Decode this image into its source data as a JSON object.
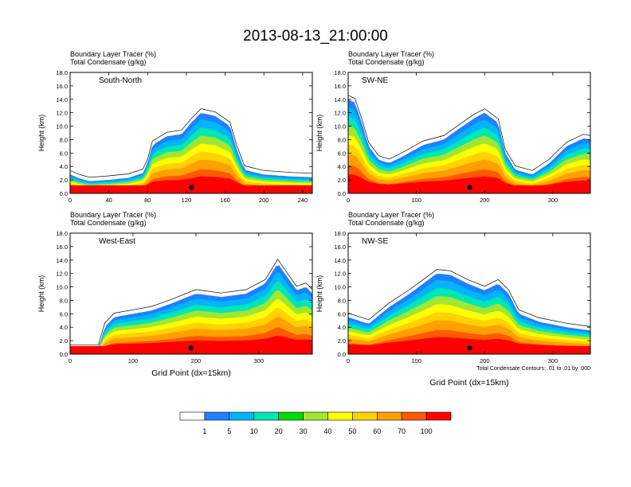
{
  "title": "2013-08-13_21:00:00",
  "panel_header": {
    "line1": "Boundary Layer Tracer   (%)",
    "line2": "Total Condensate   (g/kg)"
  },
  "ylabel": "Height (km)",
  "xlabel": "Grid Point (dx=15km)",
  "contour_note": "Total Condensate Contours: .01 to .01 by .000",
  "colorbar": {
    "colors": [
      "#ffffff",
      "#1e82ff",
      "#00b4ff",
      "#00e6b4",
      "#00dc00",
      "#a0e632",
      "#ffff00",
      "#ffd200",
      "#ffa000",
      "#ff5a00",
      "#ff0000"
    ],
    "labels": [
      "1",
      "5",
      "10",
      "20",
      "30",
      "40",
      "50",
      "60",
      "70",
      "100"
    ]
  },
  "chart_data": [
    {
      "type": "heatmap",
      "panel_label": "South-North",
      "xlim": [
        0,
        250
      ],
      "ylim": [
        0,
        18
      ],
      "xticks": [
        0,
        40,
        80,
        120,
        160,
        200,
        240
      ],
      "yticks": [
        "0.0",
        "2.0",
        "4.0",
        "6.0",
        "8.0",
        "10.0",
        "12.0",
        "14.0",
        "16.0",
        "18.0"
      ],
      "yticks_num": [
        0,
        2,
        4,
        6,
        8,
        10,
        12,
        14,
        16,
        18
      ],
      "marker_x": 125,
      "plume": [
        [
          0,
          2.8
        ],
        [
          10,
          2.2
        ],
        [
          20,
          1.8
        ],
        [
          40,
          2.0
        ],
        [
          60,
          2.3
        ],
        [
          75,
          3.0
        ],
        [
          80,
          4.5
        ],
        [
          85,
          7.2
        ],
        [
          100,
          8.5
        ],
        [
          115,
          8.8
        ],
        [
          125,
          10.5
        ],
        [
          135,
          12.0
        ],
        [
          150,
          11.5
        ],
        [
          165,
          10.0
        ],
        [
          172,
          6.5
        ],
        [
          180,
          3.5
        ],
        [
          200,
          2.8
        ],
        [
          230,
          2.5
        ],
        [
          250,
          2.4
        ]
      ]
    },
    {
      "type": "heatmap",
      "panel_label": "SW-NE",
      "xlim": [
        0,
        355
      ],
      "ylim": [
        0,
        18
      ],
      "xticks": [
        0,
        100,
        200,
        300
      ],
      "yticks": [
        "0.0",
        "2.0",
        "4.0",
        "6.0",
        "8.0",
        "10.0",
        "12.0",
        "14.0",
        "16.0",
        "18.0"
      ],
      "yticks_num": [
        0,
        2,
        4,
        6,
        8,
        10,
        12,
        14,
        16,
        18
      ],
      "marker_x": 178,
      "plume": [
        [
          0,
          14.0
        ],
        [
          10,
          13.5
        ],
        [
          20,
          10.5
        ],
        [
          30,
          7.0
        ],
        [
          45,
          5.0
        ],
        [
          60,
          4.5
        ],
        [
          80,
          5.5
        ],
        [
          110,
          7.2
        ],
        [
          140,
          8.0
        ],
        [
          165,
          9.8
        ],
        [
          185,
          11.2
        ],
        [
          200,
          12.0
        ],
        [
          220,
          10.5
        ],
        [
          230,
          6.0
        ],
        [
          245,
          3.5
        ],
        [
          270,
          2.8
        ],
        [
          295,
          4.5
        ],
        [
          320,
          7.0
        ],
        [
          345,
          8.2
        ],
        [
          355,
          8.0
        ]
      ]
    },
    {
      "type": "heatmap",
      "panel_label": "West-East",
      "xlim": [
        0,
        385
      ],
      "ylim": [
        0,
        18
      ],
      "xticks": [
        0,
        100,
        200,
        300
      ],
      "yticks": [
        "0.0",
        "2.0",
        "4.0",
        "6.0",
        "8.0",
        "10.0",
        "12.0",
        "14.0",
        "16.0",
        "18.0"
      ],
      "yticks_num": [
        0,
        2,
        4,
        6,
        8,
        10,
        12,
        14,
        16,
        18
      ],
      "marker_x": 192,
      "plume": [
        [
          0,
          0.8
        ],
        [
          45,
          0.8
        ],
        [
          55,
          4.0
        ],
        [
          70,
          5.5
        ],
        [
          100,
          6.0
        ],
        [
          130,
          6.5
        ],
        [
          160,
          7.5
        ],
        [
          200,
          9.0
        ],
        [
          240,
          8.5
        ],
        [
          280,
          9.0
        ],
        [
          310,
          10.5
        ],
        [
          330,
          13.5
        ],
        [
          345,
          11.5
        ],
        [
          360,
          9.5
        ],
        [
          375,
          10.0
        ],
        [
          385,
          9.0
        ]
      ]
    },
    {
      "type": "heatmap",
      "panel_label": "NW-SE",
      "xlim": [
        0,
        355
      ],
      "ylim": [
        0,
        18
      ],
      "xticks": [
        0,
        100,
        200,
        300
      ],
      "yticks": [
        "0.0",
        "2.0",
        "4.0",
        "6.0",
        "8.0",
        "10.0",
        "12.0",
        "14.0",
        "16.0",
        "18.0"
      ],
      "yticks_num": [
        0,
        2,
        4,
        6,
        8,
        10,
        12,
        14,
        16,
        18
      ],
      "marker_x": 178,
      "plume": [
        [
          0,
          5.5
        ],
        [
          15,
          5.0
        ],
        [
          30,
          4.5
        ],
        [
          60,
          7.0
        ],
        [
          90,
          9.0
        ],
        [
          110,
          10.5
        ],
        [
          130,
          12.0
        ],
        [
          150,
          11.8
        ],
        [
          175,
          10.5
        ],
        [
          200,
          9.5
        ],
        [
          220,
          10.5
        ],
        [
          235,
          9.0
        ],
        [
          250,
          6.0
        ],
        [
          280,
          4.8
        ],
        [
          320,
          4.0
        ],
        [
          355,
          3.5
        ]
      ]
    }
  ]
}
